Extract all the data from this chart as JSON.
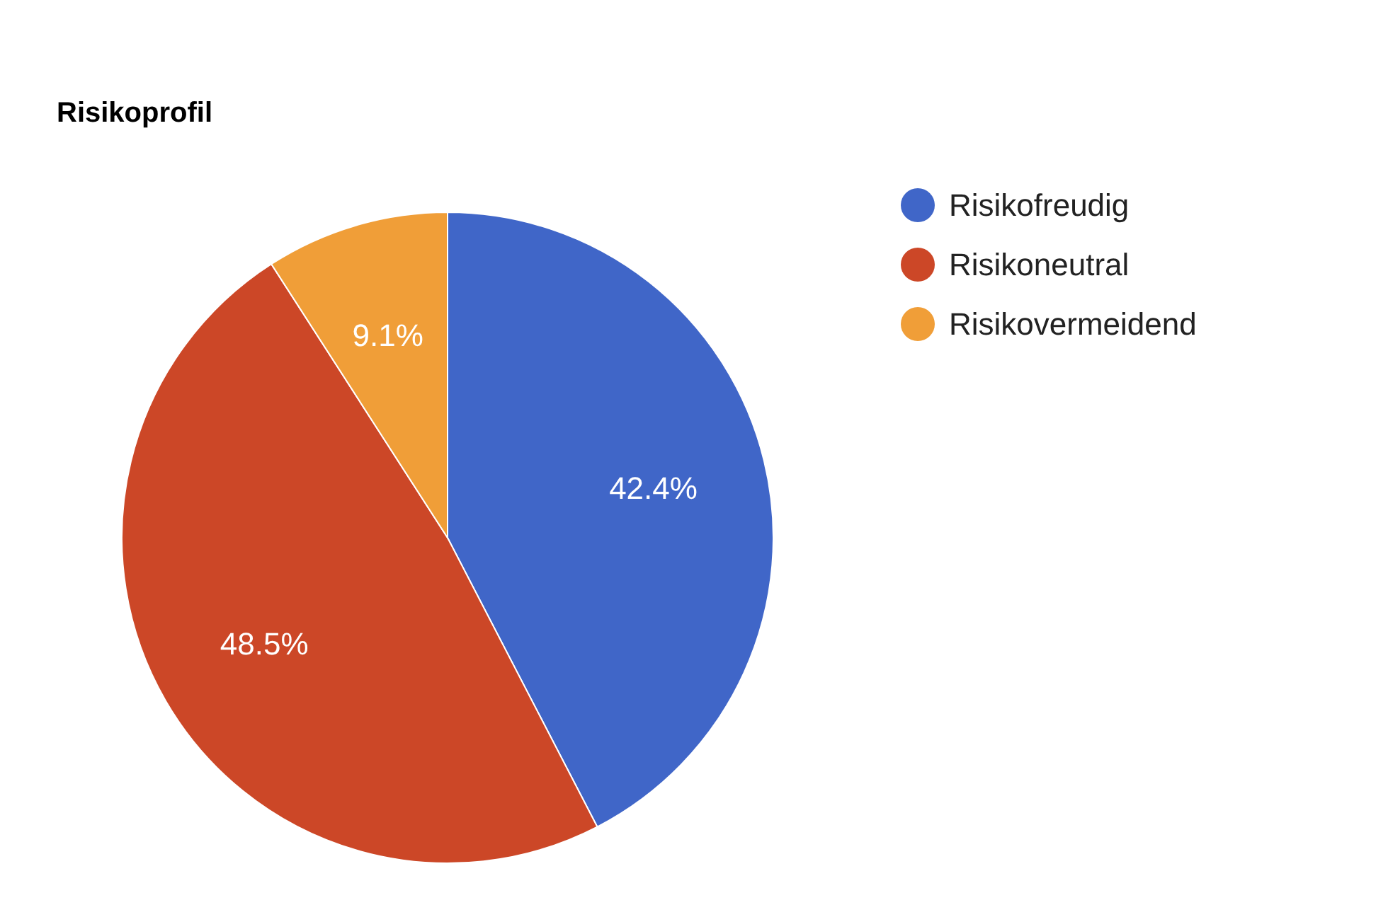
{
  "chart_data": {
    "type": "pie",
    "title": "Risikoprofil",
    "categories": [
      "Risikofreudig",
      "Risikoneutral",
      "Risikovermeidend"
    ],
    "values": [
      42.4,
      48.5,
      9.1
    ],
    "colors": [
      "#4066c8",
      "#cc4727",
      "#f09e38"
    ],
    "value_labels": [
      "42.4%",
      "48.5%",
      "9.1%"
    ],
    "legend": "top right"
  }
}
